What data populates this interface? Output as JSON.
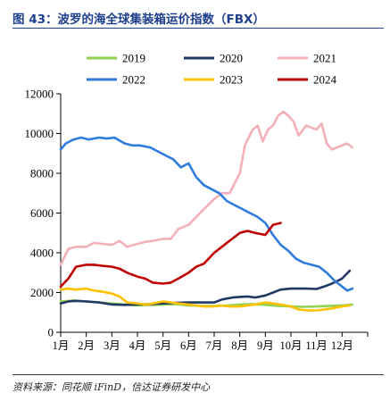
{
  "title": "图 43：波罗的海全球集装箱运价指数（FBX）",
  "source": "资料来源：同花顺 iFinD，信达证券研发中心",
  "chart_data": {
    "type": "line",
    "title": "",
    "xlabel": "",
    "ylabel": "",
    "ylim": [
      0,
      12000
    ],
    "yticks": [
      0,
      2000,
      4000,
      6000,
      8000,
      10000,
      12000
    ],
    "xlim": [
      0,
      11.4
    ],
    "xticks": [
      "1月",
      "2月",
      "3月",
      "4月",
      "5月",
      "6月",
      "7月",
      "8月",
      "9月",
      "10月",
      "11月",
      "12月"
    ],
    "grid": false,
    "legend": "top",
    "series": [
      {
        "name": "2019",
        "color": "#92d050",
        "x": [
          0,
          0.5,
          1,
          1.5,
          2,
          2.5,
          3,
          3.5,
          4,
          4.5,
          5,
          5.5,
          6,
          6.5,
          7,
          7.5,
          8,
          8.5,
          9,
          9.5,
          10,
          10.5,
          11,
          11.4
        ],
        "y": [
          1550,
          1600,
          1550,
          1500,
          1450,
          1400,
          1350,
          1380,
          1400,
          1420,
          1350,
          1330,
          1320,
          1350,
          1400,
          1420,
          1380,
          1330,
          1300,
          1280,
          1300,
          1330,
          1350,
          1400
        ]
      },
      {
        "name": "2020",
        "color": "#1f3864",
        "x": [
          0,
          0.3,
          0.6,
          1,
          1.5,
          2,
          2.5,
          3,
          3.5,
          4,
          4.5,
          5,
          5.5,
          6,
          6.3,
          6.7,
          7,
          7.3,
          7.6,
          8,
          8.3,
          8.6,
          9,
          9.3,
          9.6,
          10,
          10.3,
          10.6,
          11,
          11.3
        ],
        "y": [
          1450,
          1550,
          1580,
          1550,
          1500,
          1400,
          1380,
          1400,
          1420,
          1450,
          1480,
          1500,
          1500,
          1500,
          1650,
          1750,
          1780,
          1800,
          1750,
          1850,
          2000,
          2150,
          2200,
          2200,
          2200,
          2180,
          2300,
          2450,
          2700,
          3100
        ]
      },
      {
        "name": "2021",
        "color": "#f4b0b7",
        "x": [
          0,
          0.3,
          0.6,
          1,
          1.3,
          1.6,
          2,
          2.3,
          2.6,
          3,
          3.3,
          3.6,
          4,
          4.3,
          4.6,
          5,
          5.3,
          5.6,
          6,
          6.3,
          6.6,
          7,
          7.2,
          7.5,
          7.7,
          7.9,
          8.1,
          8.3,
          8.5,
          8.7,
          8.9,
          9.1,
          9.3,
          9.6,
          9.8,
          10,
          10.2,
          10.4,
          10.6,
          10.8,
          11,
          11.2,
          11.4
        ],
        "y": [
          3400,
          4200,
          4300,
          4300,
          4500,
          4450,
          4400,
          4600,
          4300,
          4450,
          4550,
          4600,
          4700,
          4700,
          5200,
          5400,
          5800,
          6200,
          6700,
          7000,
          7000,
          8000,
          9400,
          10200,
          10400,
          9600,
          10200,
          10400,
          10900,
          11100,
          10900,
          10600,
          9900,
          10400,
          10300,
          10200,
          10500,
          9500,
          9200,
          9300,
          9400,
          9500,
          9300
        ]
      },
      {
        "name": "2022",
        "color": "#2f7bde",
        "x": [
          0,
          0.2,
          0.5,
          0.8,
          1.1,
          1.5,
          1.8,
          2.1,
          2.5,
          2.8,
          3.1,
          3.5,
          3.8,
          4.1,
          4.4,
          4.7,
          5,
          5.3,
          5.6,
          5.9,
          6.2,
          6.5,
          6.8,
          7.1,
          7.4,
          7.7,
          8,
          8.3,
          8.6,
          8.9,
          9.2,
          9.5,
          9.8,
          10.1,
          10.4,
          10.7,
          11,
          11.2,
          11.4
        ],
        "y": [
          9200,
          9500,
          9700,
          9800,
          9700,
          9800,
          9750,
          9800,
          9500,
          9400,
          9400,
          9300,
          9100,
          8900,
          8700,
          8300,
          8500,
          7800,
          7400,
          7200,
          7000,
          6600,
          6400,
          6200,
          6000,
          5800,
          5500,
          4900,
          4400,
          4100,
          3700,
          3500,
          3400,
          3300,
          3000,
          2600,
          2300,
          2100,
          2200
        ]
      },
      {
        "name": "2023",
        "color": "#ffc000",
        "x": [
          0,
          0.3,
          0.6,
          1,
          1.3,
          1.6,
          2,
          2.3,
          2.6,
          3,
          3.3,
          3.6,
          4,
          4.3,
          4.6,
          5,
          5.3,
          5.6,
          6,
          6.3,
          6.6,
          7,
          7.3,
          7.6,
          8,
          8.3,
          8.6,
          9,
          9.3,
          9.6,
          10,
          10.3,
          10.6,
          11,
          11.3
        ],
        "y": [
          2150,
          2200,
          2150,
          2200,
          2100,
          2050,
          1950,
          1800,
          1500,
          1450,
          1400,
          1450,
          1550,
          1500,
          1450,
          1400,
          1350,
          1300,
          1300,
          1350,
          1300,
          1300,
          1350,
          1400,
          1500,
          1450,
          1400,
          1300,
          1150,
          1100,
          1100,
          1150,
          1200,
          1300,
          1350
        ]
      },
      {
        "name": "2024",
        "color": "#c00000",
        "x": [
          0,
          0.3,
          0.6,
          1,
          1.3,
          1.6,
          2,
          2.3,
          2.6,
          3,
          3.3,
          3.6,
          4,
          4.3,
          4.6,
          5,
          5.3,
          5.6,
          6,
          6.3,
          6.6,
          7,
          7.3,
          7.6,
          8,
          8.3,
          8.6
        ],
        "y": [
          2300,
          2700,
          3300,
          3400,
          3400,
          3350,
          3300,
          3200,
          3000,
          2800,
          2700,
          2500,
          2450,
          2500,
          2700,
          3000,
          3300,
          3450,
          4000,
          4300,
          4600,
          5000,
          5100,
          5000,
          4900,
          5400,
          5500
        ]
      }
    ]
  }
}
